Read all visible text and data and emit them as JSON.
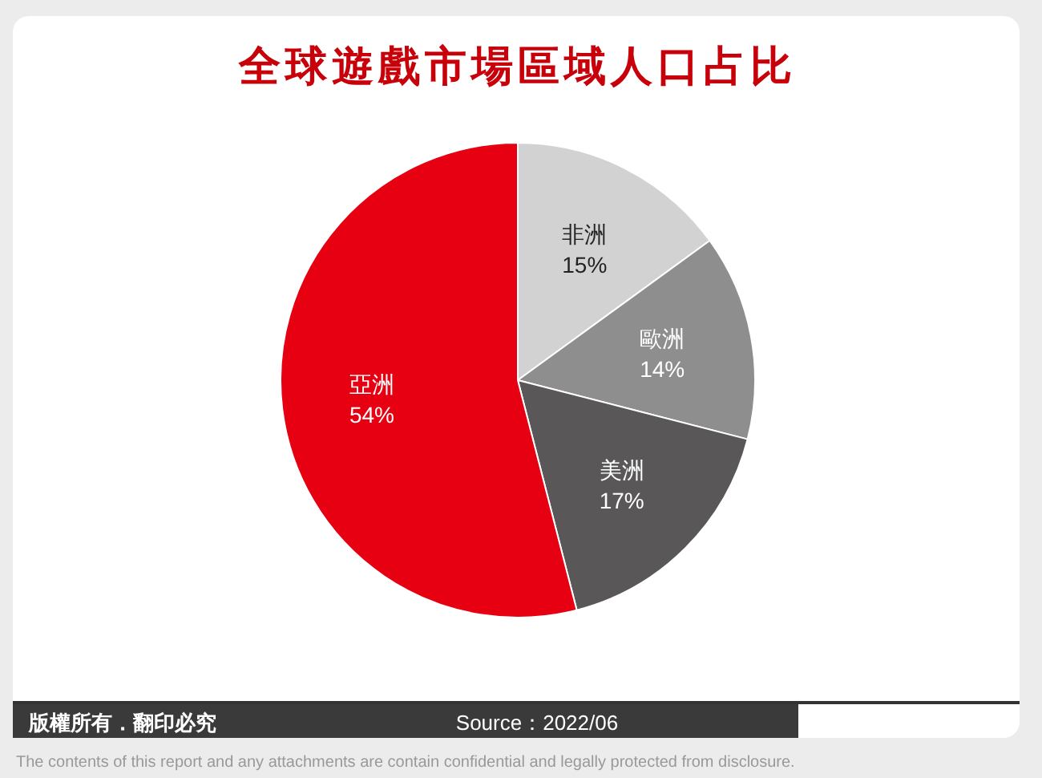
{
  "chart_data": {
    "type": "pie",
    "title": "全球遊戲市場區域人口占比",
    "categories": [
      "非洲",
      "歐洲",
      "美洲",
      "亞洲"
    ],
    "values": [
      15,
      14,
      17,
      54
    ],
    "colors": [
      "#d2d2d2",
      "#8e8e8e",
      "#595757",
      "#e60012"
    ],
    "value_labels": [
      "15%",
      "14%",
      "17%",
      "54%"
    ],
    "legend": false,
    "annotations": [
      "版權所有．翻印必究",
      "Source：2022/06",
      "The contents of this report and any attachments are contain confidential and legally protected from disclosure."
    ]
  }
}
